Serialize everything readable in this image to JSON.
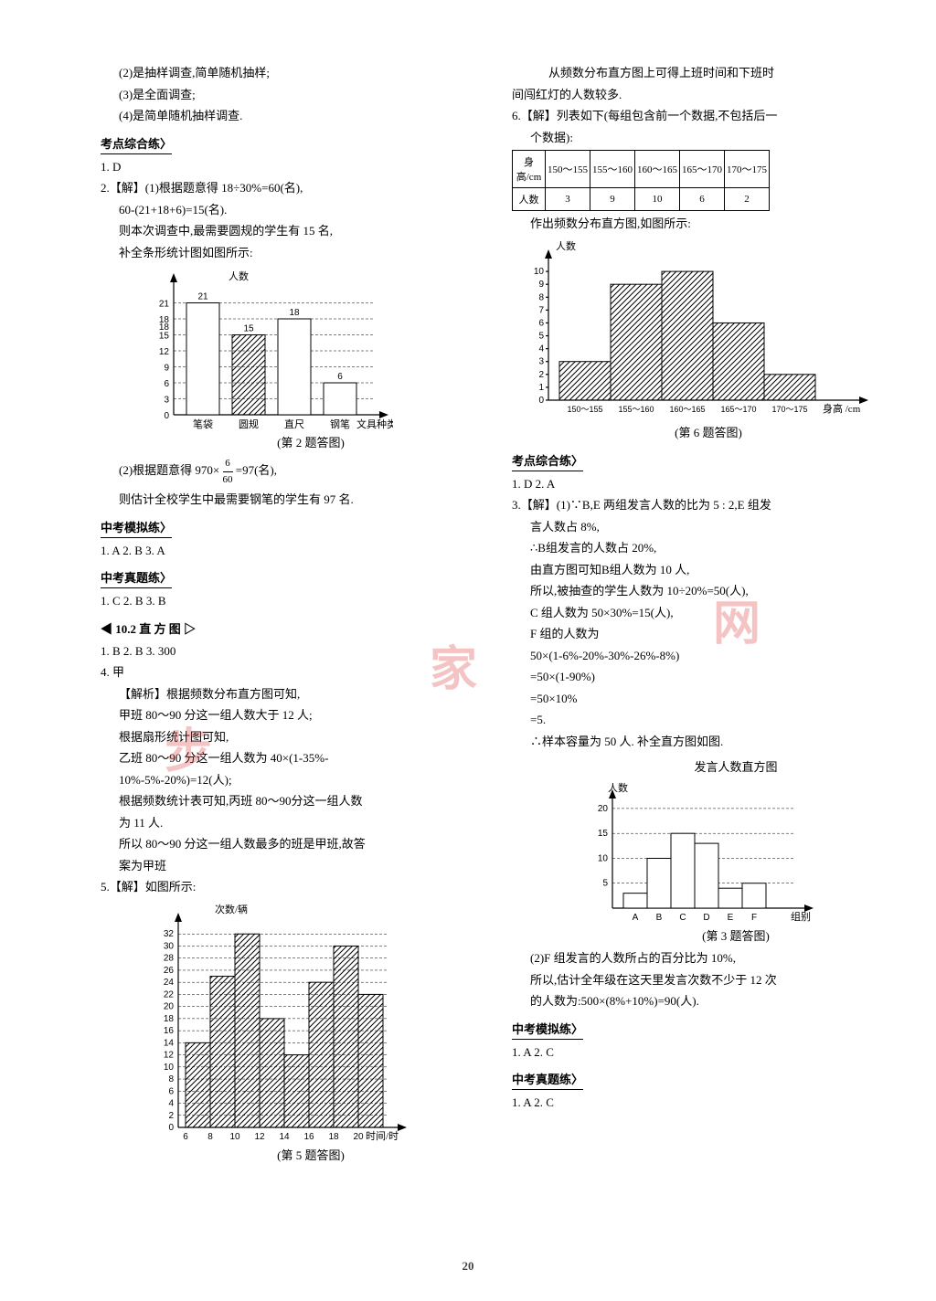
{
  "page_number": "20",
  "watermarks": {
    "w1": "步",
    "w2": "家",
    "w3": "网"
  },
  "left": {
    "intro": [
      "(2)是抽样调查,简单随机抽样;",
      "(3)是全面调查;",
      "(4)是简单随机抽样调查."
    ],
    "sec1": "考点综合练〉",
    "ans1": "1. D",
    "p2a": "2.【解】(1)根据题意得 18÷30%=60(名),",
    "p2b": "60-(21+18+6)=15(名).",
    "p2c": "则本次调查中,最需要圆规的学生有 15 名,",
    "p2d": "补全条形统计图如图所示:",
    "chart2": {
      "ylabel": "人数",
      "xlabel": "文具种类",
      "categories": [
        "笔袋",
        "圆规",
        "直尺",
        "钢笔"
      ],
      "values": [
        21,
        15,
        18,
        6
      ],
      "value_labels": [
        "21",
        "15",
        "18",
        "6"
      ],
      "yticks": [
        0,
        3,
        6,
        9,
        12,
        15,
        18,
        21,
        18
      ],
      "hatched": [
        false,
        true,
        false,
        false
      ],
      "caption": "(第 2 题答图)"
    },
    "p2e": "(2)根据题意得 970×",
    "p2e_frac_num": "6",
    "p2e_frac_den": "60",
    "p2e_end": "=97(名),",
    "p2f": "则估计全校学生中最需要钢笔的学生有 97 名.",
    "sec2": "中考模拟练〉",
    "ans2": "1. A  2. B  3. A",
    "sec3": "中考真题练〉",
    "ans3": "1. C  2. B  3. B",
    "chapter": "◀      10.2  直 方 图      ▷",
    "ans4": "1. B  2. B  3. 300",
    "p4a": "4. 甲",
    "p4b": "【解析】根据频数分布直方图可知,",
    "p4c": "甲班 80～90 分这一组人数大于 12 人;",
    "p4d": "根据扇形统计图可知,",
    "p4e": "乙班 80～90 分这一组人数为 40×(1-35%-",
    "p4f": "10%-5%-20%)=12(人);",
    "p4g": "根据频数统计表可知,丙班 80～90分这一组人数",
    "p4h": "为 11 人.",
    "p4i": "所以 80～90 分这一组人数最多的班是甲班,故答",
    "p4j": "案为甲班",
    "p5a": "5.【解】如图所示:",
    "chart5": {
      "ylabel": "次数/辆",
      "xlabel": "时间/时",
      "xticks": [
        "6",
        "8",
        "10",
        "12",
        "14",
        "16",
        "18",
        "20"
      ],
      "values": [
        14,
        25,
        32,
        18,
        12,
        24,
        30,
        22
      ],
      "yticks": [
        0,
        2,
        4,
        6,
        8,
        10,
        12,
        14,
        16,
        18,
        20,
        22,
        24,
        26,
        28,
        30,
        32
      ],
      "caption": "(第 5 题答图)"
    }
  },
  "right": {
    "p5b": "从频数分布直方图上可得上班时间和下班时",
    "p5c": "间闯红灯的人数较多.",
    "p6a": "6.【解】列表如下(每组包含前一个数据,不包括后一",
    "p6b": "个数据):",
    "table6": {
      "header": "身高/cm",
      "cols": [
        "150～155",
        "155～160",
        "160～165",
        "165～170",
        "170～175"
      ],
      "row_label": "人数",
      "row": [
        "3",
        "9",
        "10",
        "6",
        "2"
      ]
    },
    "p6c": "作出频数分布直方图,如图所示:",
    "chart6": {
      "ylabel": "人数",
      "values": [
        3,
        9,
        10,
        6,
        2
      ],
      "yticks": [
        0,
        1,
        2,
        3,
        4,
        5,
        6,
        7,
        8,
        9,
        10
      ],
      "xlabels": [
        "150～155",
        "155～160",
        "160～165",
        "165～170",
        "170～175"
      ],
      "xlabel": "身高 /cm",
      "caption": "(第 6 题答图)"
    },
    "sec1": "考点综合练〉",
    "ans1": "1. D  2. A",
    "p3a": "3.【解】(1)∵B,E 两组发言人数的比为 5 : 2,E 组发",
    "p3b": "言人数占 8%,",
    "p3c": "∴B组发言的人数占 20%,",
    "p3d": "由直方图可知B组人数为 10 人,",
    "p3e": "所以,被抽查的学生人数为 10÷20%=50(人),",
    "p3f": "C 组人数为 50×30%=15(人),",
    "p3g": "F 组的人数为",
    "p3h": "50×(1-6%-20%-30%-26%-8%)",
    "p3i": "=50×(1-90%)",
    "p3j": "=50×10%",
    "p3k": "=5.",
    "p3l": "∴样本容量为 50 人. 补全直方图如图.",
    "chart3": {
      "title": "发言人数直方图",
      "ylabel": "人数",
      "xlabel": "组别",
      "categories": [
        "A",
        "B",
        "C",
        "D",
        "E",
        "F"
      ],
      "values": [
        3,
        10,
        15,
        13,
        4,
        5
      ],
      "yticks": [
        5,
        10,
        15,
        20
      ],
      "caption": "(第 3 题答图)"
    },
    "p3m": "(2)F 组发言的人数所占的百分比为 10%,",
    "p3n": "所以,估计全年级在这天里发言次数不少于 12 次",
    "p3o": "的人数为:500×(8%+10%)=90(人).",
    "sec2": "中考模拟练〉",
    "ans2": "1. A  2. C",
    "sec3": "中考真题练〉",
    "ans3": "1. A  2. C"
  }
}
